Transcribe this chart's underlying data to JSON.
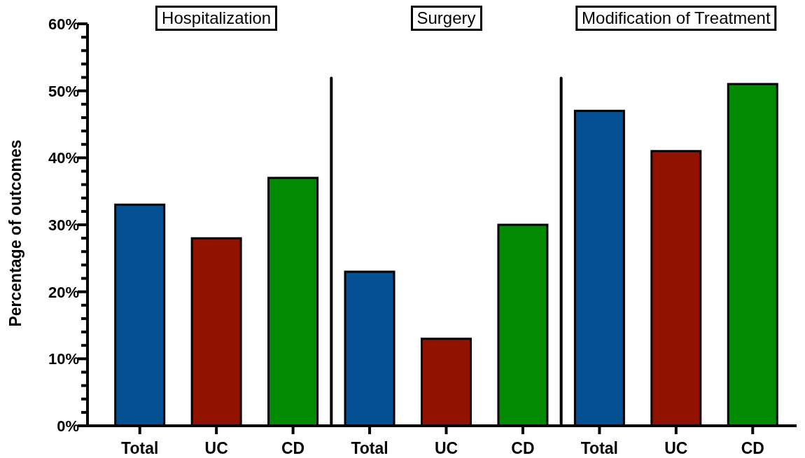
{
  "chart_data": {
    "type": "bar",
    "ylabel": "Percentage of outcomes",
    "categories": [
      "Total",
      "UC",
      "CD",
      "Total",
      "UC",
      "CD",
      "Total",
      "UC",
      "CD"
    ],
    "values": [
      33,
      28,
      37,
      23,
      13,
      30,
      47,
      41,
      51
    ],
    "colors": [
      "#035093",
      "#921200",
      "#038A03",
      "#035093",
      "#921200",
      "#038A03",
      "#035093",
      "#921200",
      "#038A03"
    ],
    "ylim": [
      0,
      60
    ],
    "yticks": [
      {
        "value": 0,
        "label": "0%"
      },
      {
        "value": 2,
        "label": null
      },
      {
        "value": 4,
        "label": null
      },
      {
        "value": 6,
        "label": null
      },
      {
        "value": 8,
        "label": null
      },
      {
        "value": 10,
        "label": "10%"
      },
      {
        "value": 12,
        "label": null
      },
      {
        "value": 14,
        "label": null
      },
      {
        "value": 16,
        "label": null
      },
      {
        "value": 18,
        "label": null
      },
      {
        "value": 20,
        "label": "20%"
      },
      {
        "value": 22,
        "label": null
      },
      {
        "value": 24,
        "label": null
      },
      {
        "value": 26,
        "label": null
      },
      {
        "value": 28,
        "label": null
      },
      {
        "value": 30,
        "label": "30%"
      },
      {
        "value": 32,
        "label": null
      },
      {
        "value": 34,
        "label": null
      },
      {
        "value": 36,
        "label": null
      },
      {
        "value": 38,
        "label": null
      },
      {
        "value": 40,
        "label": "40%"
      },
      {
        "value": 42,
        "label": null
      },
      {
        "value": 44,
        "label": null
      },
      {
        "value": 46,
        "label": null
      },
      {
        "value": 48,
        "label": null
      },
      {
        "value": 50,
        "label": "50%"
      },
      {
        "value": 52,
        "label": null
      },
      {
        "value": 54,
        "label": null
      },
      {
        "value": 56,
        "label": null
      },
      {
        "value": 58,
        "label": null
      },
      {
        "value": 60,
        "label": "60%"
      }
    ],
    "annotations": [
      "Hospitalization",
      "Surgery",
      "Modification of Treatment"
    ],
    "grid": false,
    "legend": false
  }
}
